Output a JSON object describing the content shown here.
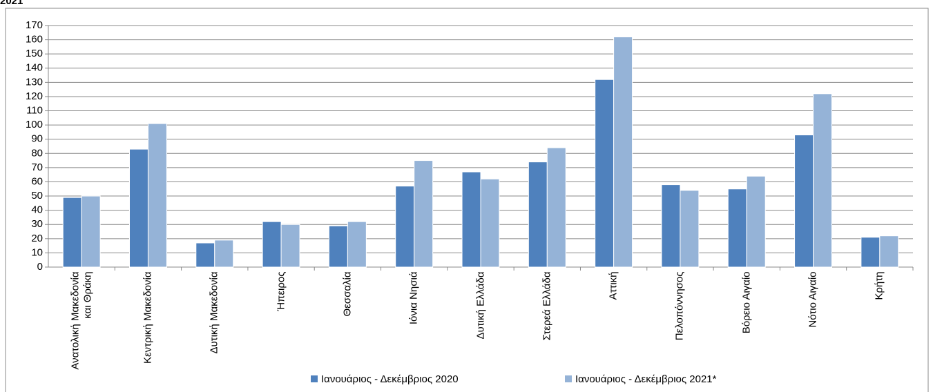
{
  "chart_data": {
    "type": "bar",
    "title": "2021",
    "categories": [
      "Ανατολική Μακεδονία και Θράκη",
      "Κεντρική Μακεδονία",
      "Δυτική Μακεδονία",
      "Ήπειρος",
      "Θεσσαλία",
      "Ιόνια Νησιά",
      "Δυτική Ελλάδα",
      "Στερεά Ελλάδα",
      "Αττική",
      "Πελοπόννησος",
      "Βόρειο Αιγαίο",
      "Νότιο Αιγαίο",
      "Κρήτη"
    ],
    "series": [
      {
        "name": "Ιανουάριος - Δεκέμβριος 2020",
        "color": "#4f81bd",
        "values": [
          49,
          83,
          17,
          32,
          29,
          57,
          67,
          74,
          132,
          58,
          55,
          93,
          21
        ]
      },
      {
        "name": "Ιανουάριος - Δεκέμβριος 2021*",
        "color": "#95b3d7",
        "values": [
          50,
          101,
          19,
          30,
          32,
          75,
          62,
          84,
          162,
          54,
          64,
          122,
          22
        ]
      }
    ],
    "ylim": [
      0,
      170
    ],
    "yticks": [
      0,
      10,
      20,
      30,
      40,
      50,
      60,
      70,
      80,
      90,
      100,
      110,
      120,
      130,
      140,
      150,
      160,
      170
    ],
    "grid": true,
    "legend": "bottom"
  }
}
